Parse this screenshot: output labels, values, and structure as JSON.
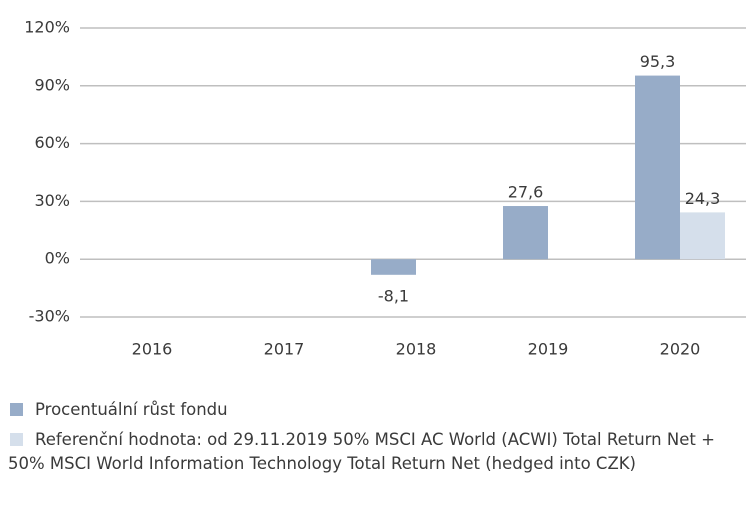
{
  "chart_data": {
    "type": "bar",
    "categories": [
      "2016",
      "2017",
      "2018",
      "2019",
      "2020"
    ],
    "series": [
      {
        "name": "Procentuální růst fondu",
        "color": "#97acc8",
        "values": [
          null,
          null,
          -8.1,
          27.6,
          95.3
        ],
        "value_labels": [
          null,
          null,
          "-8,1",
          "27,6",
          "95,3"
        ]
      },
      {
        "name": "Referenční hodnota: od 29.11.2019 50% MSCI AC World (ACWI) Total Return Net + 50% MSCI World Information Technology Total Return Net (hedged into CZK)",
        "color": "#d5dfeb",
        "values": [
          null,
          null,
          null,
          null,
          24.3
        ],
        "value_labels": [
          null,
          null,
          null,
          null,
          "24,3"
        ]
      }
    ],
    "ylim": [
      -30,
      120
    ],
    "yticks": [
      {
        "value": -30,
        "label": "-30%"
      },
      {
        "value": 0,
        "label": "0%"
      },
      {
        "value": 30,
        "label": "30%"
      },
      {
        "value": 60,
        "label": "60%"
      },
      {
        "value": 90,
        "label": "90%"
      },
      {
        "value": 120,
        "label": "120%"
      }
    ],
    "grid": true,
    "legend": "bottom"
  }
}
